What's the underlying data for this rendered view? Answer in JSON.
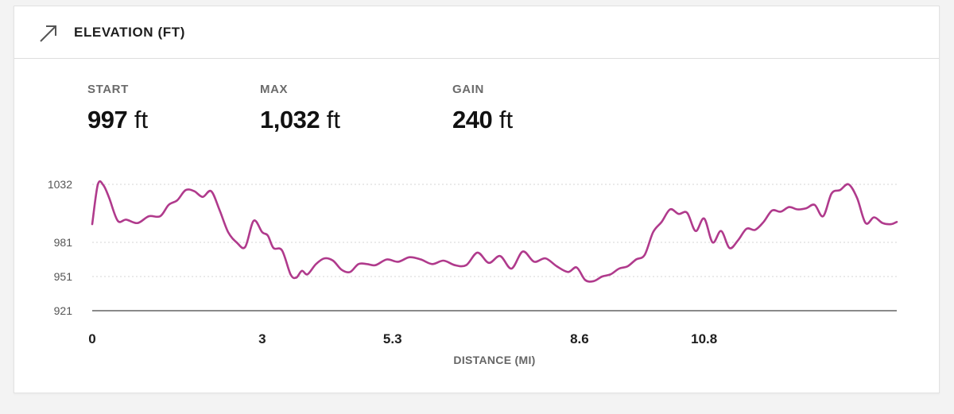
{
  "header": {
    "icon": "trend-arrow-icon",
    "title": "ELEVATION (FT)"
  },
  "stats": [
    {
      "label": "START",
      "value": "997",
      "unit": "ft"
    },
    {
      "label": "MAX",
      "value": "1,032",
      "unit": "ft"
    },
    {
      "label": "GAIN",
      "value": "240",
      "unit": "ft"
    }
  ],
  "colors": {
    "line": "#b03a8c",
    "grid": "#d6d6d6",
    "axis": "#444444"
  },
  "chart_data": {
    "type": "line",
    "xlabel": "DISTANCE (MI)",
    "ylabel": "",
    "xlim": [
      0,
      14.2
    ],
    "ylim": [
      921,
      1032
    ],
    "yticks": [
      "1032",
      "981",
      "951",
      "921"
    ],
    "xticks": [
      "0",
      "3",
      "5.3",
      "8.6",
      "10.8"
    ],
    "xtick_values": [
      0,
      3,
      5.3,
      8.6,
      10.8
    ],
    "grid": true,
    "legend": "none",
    "series": [
      {
        "x": [
          0,
          0.1,
          0.2,
          0.3,
          0.45,
          0.6,
          0.8,
          1.0,
          1.2,
          1.35,
          1.5,
          1.65,
          1.8,
          1.95,
          2.1,
          2.25,
          2.4,
          2.55,
          2.7,
          2.85,
          3.0,
          3.1,
          3.2,
          3.35,
          3.5,
          3.6,
          3.7,
          3.8,
          3.95,
          4.1,
          4.25,
          4.4,
          4.55,
          4.7,
          4.85,
          5.0,
          5.2,
          5.4,
          5.6,
          5.8,
          6.0,
          6.2,
          6.4,
          6.6,
          6.8,
          7.0,
          7.2,
          7.4,
          7.6,
          7.8,
          8.0,
          8.2,
          8.4,
          8.55,
          8.7,
          8.85,
          9.0,
          9.15,
          9.3,
          9.45,
          9.6,
          9.75,
          9.9,
          10.05,
          10.2,
          10.35,
          10.5,
          10.65,
          10.8,
          10.95,
          11.1,
          11.25,
          11.4,
          11.55,
          11.7,
          11.85,
          12.0,
          12.15,
          12.3,
          12.45,
          12.6,
          12.75,
          12.9,
          13.05,
          13.2,
          13.35,
          13.5,
          13.65,
          13.8,
          13.95,
          14.1,
          14.2
        ],
        "y": [
          997,
          1032,
          1031,
          1020,
          1000,
          1001,
          998,
          1004,
          1004,
          1014,
          1018,
          1027,
          1026,
          1021,
          1026,
          1009,
          990,
          981,
          977,
          1000,
          990,
          987,
          976,
          974,
          953,
          950,
          956,
          953,
          962,
          967,
          965,
          957,
          955,
          962,
          962,
          961,
          966,
          964,
          968,
          966,
          962,
          965,
          961,
          961,
          972,
          963,
          969,
          958,
          973,
          964,
          967,
          960,
          955,
          959,
          948,
          947,
          951,
          953,
          958,
          960,
          966,
          970,
          990,
          999,
          1010,
          1006,
          1007,
          991,
          1002,
          981,
          991,
          976,
          983,
          993,
          992,
          999,
          1009,
          1008,
          1012,
          1010,
          1011,
          1014,
          1004,
          1024,
          1027,
          1032,
          1020,
          998,
          1003,
          998,
          997,
          999
        ]
      }
    ]
  }
}
